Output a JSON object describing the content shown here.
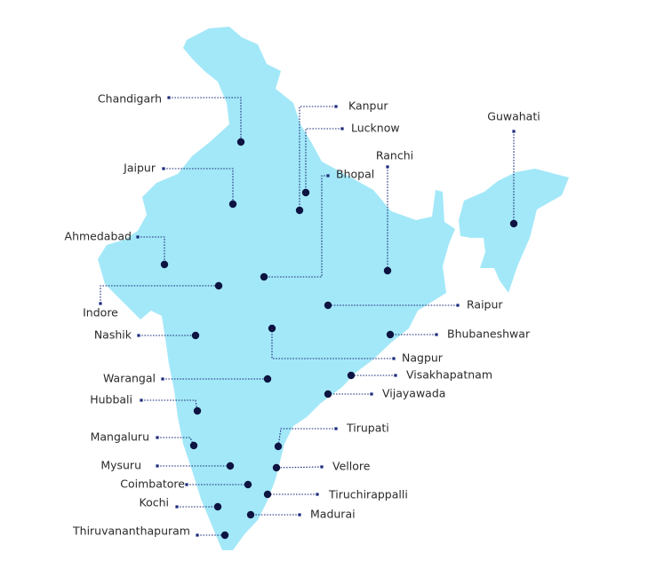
{
  "cities": [
    "Chandigarh",
    "Kanpur",
    "Lucknow",
    "Guwahati",
    "Jaipur",
    "Ranchi",
    "Bhopal",
    "Ahmedabad",
    "Indore",
    "Raipur",
    "Nashik",
    "Bhubaneshwar",
    "Nagpur",
    "Visakhapatnam",
    "Warangal",
    "Vijayawada",
    "Hubbali",
    "Tirupati",
    "Mangaluru",
    "Mysuru",
    "Vellore",
    "Coimbatore",
    "Tiruchirappalli",
    "Kochi",
    "Madurai",
    "Thiruvananthapuram"
  ]
}
